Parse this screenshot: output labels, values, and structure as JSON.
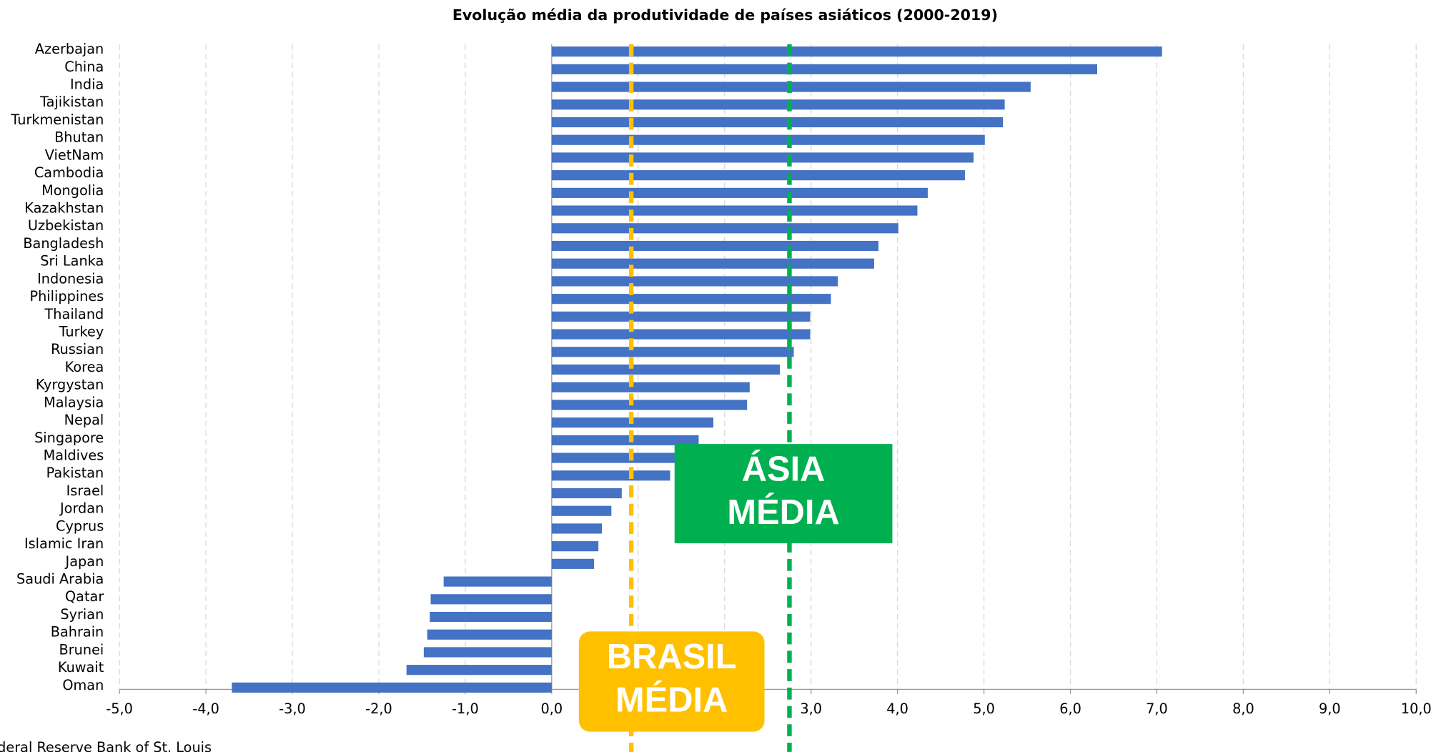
{
  "chart_data": {
    "type": "hbar",
    "title": "Evolução média da produtividade de países asiáticos (2000-2019)",
    "source": "Federal Reserve Bank of St. Louis",
    "categories": [
      "Azerbajan",
      "China",
      "India",
      "Tajikistan",
      "Turkmenistan",
      "Bhutan",
      "VietNam",
      "Cambodia",
      "Mongolia",
      "Kazakhstan",
      "Uzbekistan",
      "Bangladesh",
      "Sri Lanka",
      "Indonesia",
      "Philippines",
      "Thailand",
      "Turkey",
      "Russian",
      "Korea",
      "Kyrgystan",
      "Malaysia",
      "Nepal",
      "Singapore",
      "Maldives",
      "Pakistan",
      "Israel",
      "Jordan",
      "Cyprus",
      "Islamic Iran",
      "Japan",
      "Saudi Arabia",
      "Qatar",
      "Syrian",
      "Bahrain",
      "Brunei",
      "Kuwait",
      "Oman"
    ],
    "values": [
      7.06,
      6.31,
      5.54,
      5.24,
      5.22,
      5.01,
      4.88,
      4.78,
      4.35,
      4.23,
      4.01,
      3.78,
      3.73,
      3.31,
      3.23,
      2.99,
      2.99,
      2.8,
      2.64,
      2.29,
      2.26,
      1.87,
      1.7,
      1.6,
      1.37,
      0.81,
      0.69,
      0.58,
      0.54,
      0.49,
      -1.25,
      -1.4,
      -1.41,
      -1.44,
      -1.48,
      -1.68,
      -3.7
    ],
    "color": "#4472c4",
    "xlim": [
      -5,
      10
    ],
    "xticks": [
      {
        "value": -5,
        "label": "-5,0"
      },
      {
        "value": -4,
        "label": "-4,0"
      },
      {
        "value": -3,
        "label": "-3,0"
      },
      {
        "value": -2,
        "label": "-2,0"
      },
      {
        "value": -1,
        "label": "-1,0"
      },
      {
        "value": 0,
        "label": "0,0"
      },
      {
        "value": 1,
        "label": "1,0"
      },
      {
        "value": 2,
        "label": "2,0"
      },
      {
        "value": 3,
        "label": "3,0"
      },
      {
        "value": 4,
        "label": "4,0"
      },
      {
        "value": 5,
        "label": "5,0"
      },
      {
        "value": 6,
        "label": "6,0"
      },
      {
        "value": 7,
        "label": "7,0"
      },
      {
        "value": 8,
        "label": "8,0"
      },
      {
        "value": 9,
        "label": "9,0"
      },
      {
        "value": 10,
        "label": "10,0"
      }
    ],
    "grid": true,
    "reference_lines": [
      {
        "label": [
          "BRASIL",
          "MÉDIA"
        ],
        "value": 0.92,
        "color": "#ffc000"
      },
      {
        "label": [
          "ÁSIA",
          "MÉDIA"
        ],
        "value": 2.75,
        "color": "#00b050"
      }
    ]
  }
}
